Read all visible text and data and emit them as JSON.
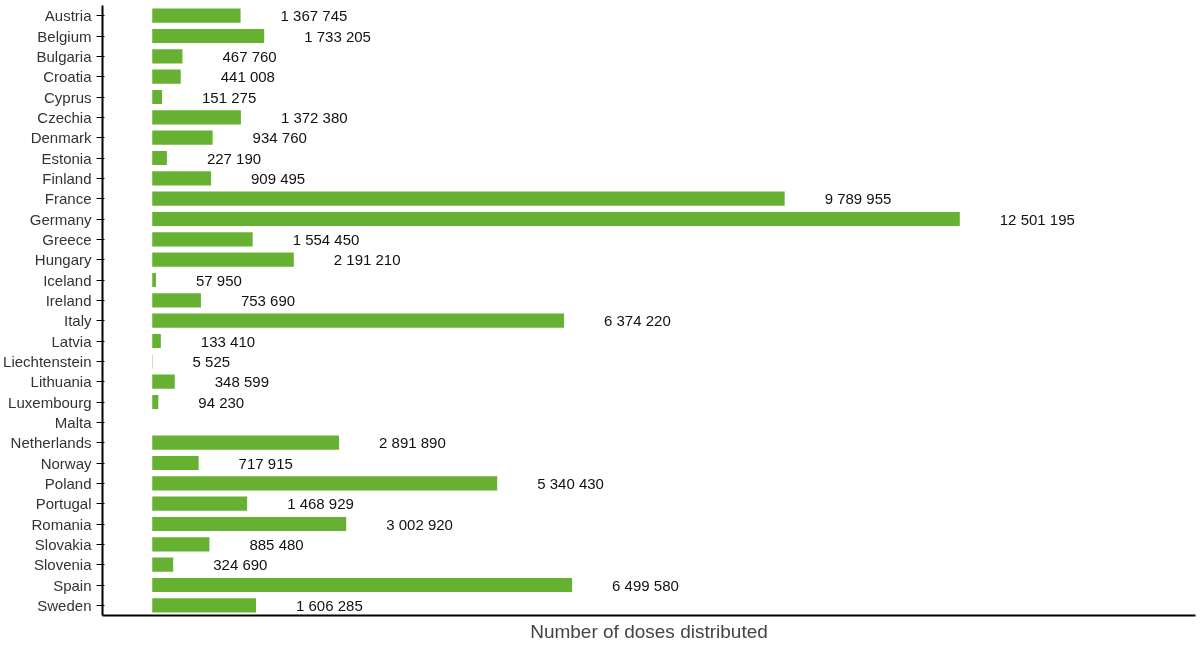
{
  "chart_data": {
    "type": "bar",
    "orientation": "horizontal",
    "xlabel": "Number of doses distributed",
    "color": "#66b032",
    "xlim": [
      -770000,
      16150000
    ],
    "tick_labels": "y",
    "grid": false,
    "categories": [
      "Austria",
      "Belgium",
      "Bulgaria",
      "Croatia",
      "Cyprus",
      "Czechia",
      "Denmark",
      "Estonia",
      "Finland",
      "France",
      "Germany",
      "Greece",
      "Hungary",
      "Iceland",
      "Ireland",
      "Italy",
      "Latvia",
      "Liechtenstein",
      "Lithuania",
      "Luxembourg",
      "Malta",
      "Netherlands",
      "Norway",
      "Poland",
      "Portugal",
      "Romania",
      "Slovakia",
      "Slovenia",
      "Spain",
      "Sweden"
    ],
    "values": [
      1367745,
      1733205,
      467760,
      441008,
      151275,
      1372380,
      934760,
      227190,
      909495,
      9789955,
      12501195,
      1554450,
      2191210,
      57950,
      753690,
      6374220,
      133410,
      5525,
      348599,
      94230,
      null,
      2891890,
      717915,
      5340430,
      1468929,
      3002920,
      885480,
      324690,
      6499580,
      1606285
    ],
    "value_labels": [
      "1 367 745",
      "1 733 205",
      "467 760",
      "441 008",
      "151 275",
      "1 372 380",
      "934 760",
      "227 190",
      "909 495",
      "9 789 955",
      "12 501 195",
      "1 554 450",
      "2 191 210",
      "57 950",
      "753 690",
      "6 374 220",
      "133 410",
      "5 525",
      "348 599",
      "94 230",
      null,
      "2 891 890",
      "717 915",
      "5 340 430",
      "1 468 929",
      "3 002 920",
      "885 480",
      "324 690",
      "6 499 580",
      "1 606 285"
    ]
  }
}
